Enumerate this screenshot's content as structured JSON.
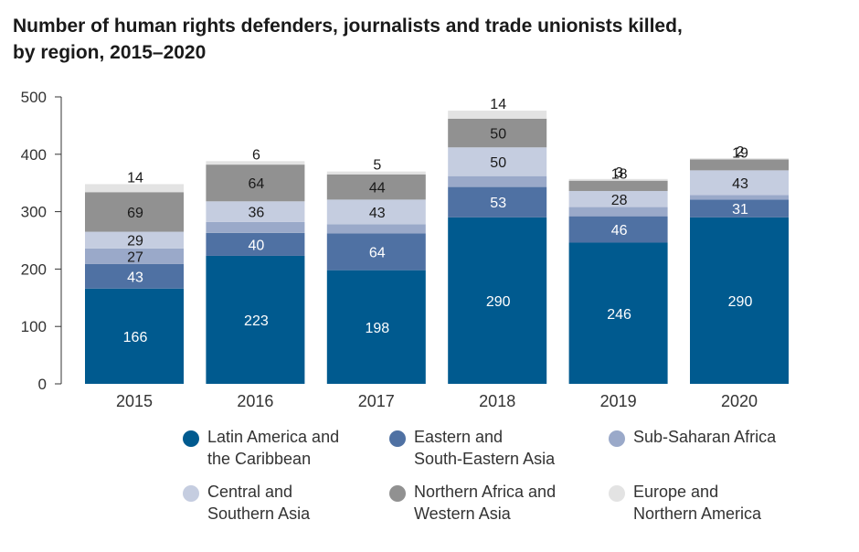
{
  "title_line1": "Number of human rights defenders, journalists and trade unionists killed,",
  "title_line2": "by region, 2015–2020",
  "chart_data": {
    "type": "bar",
    "stacked": true,
    "categories": [
      "2015",
      "2016",
      "2017",
      "2018",
      "2019",
      "2020"
    ],
    "ylim": [
      0,
      500
    ],
    "yticks": [
      "0",
      "100",
      "200",
      "300",
      "400",
      "500"
    ],
    "grid": false,
    "legend_position": "bottom",
    "series": [
      {
        "name": "Latin America and the Caribbean",
        "color": "#005a8f",
        "label_color": "#ffffff",
        "values": [
          166,
          223,
          198,
          290,
          246,
          290
        ]
      },
      {
        "name": "Eastern and South-Eastern Asia",
        "color": "#4f71a3",
        "label_color": "#ffffff",
        "values": [
          43,
          40,
          64,
          53,
          46,
          31
        ]
      },
      {
        "name": "Sub-Saharan Africa",
        "color": "#9aa9c9",
        "label_color": "#1a1a1a",
        "values": [
          27,
          19,
          16,
          19,
          16,
          8
        ]
      },
      {
        "name": "Central and Southern Asia",
        "color": "#c5cde0",
        "label_color": "#1a1a1a",
        "values": [
          29,
          36,
          43,
          50,
          28,
          43
        ]
      },
      {
        "name": "Northern Africa and Western Asia",
        "color": "#919191",
        "label_color": "#1a1a1a",
        "values": [
          69,
          64,
          44,
          50,
          18,
          19
        ]
      },
      {
        "name": "Europe and Northern America",
        "color": "#e3e3e3",
        "label_color": "#1a1a1a",
        "values": [
          14,
          6,
          5,
          14,
          3,
          2
        ]
      }
    ]
  },
  "legend": [
    {
      "line1": "Latin America and",
      "line2": "the Caribbean",
      "color": "#005a8f"
    },
    {
      "line1": "Eastern and",
      "line2": "South-Eastern Asia",
      "color": "#4f71a3"
    },
    {
      "line1": "Sub-Saharan Africa",
      "line2": "",
      "color": "#9aa9c9"
    },
    {
      "line1": "Central and",
      "line2": "Southern Asia",
      "color": "#c5cde0"
    },
    {
      "line1": "Northern Africa and",
      "line2": "Western Asia",
      "color": "#919191"
    },
    {
      "line1": "Europe and",
      "line2": "Northern America",
      "color": "#e3e3e3"
    }
  ]
}
